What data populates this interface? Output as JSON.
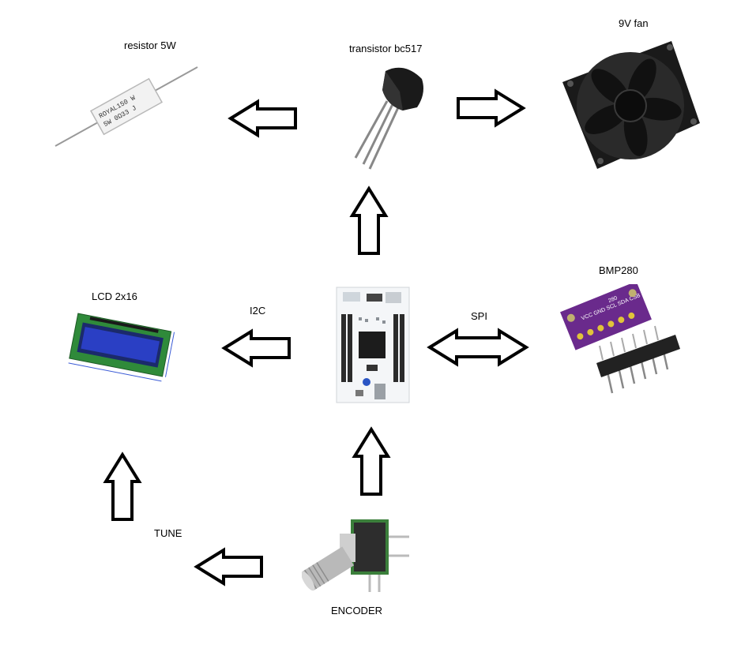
{
  "labels": {
    "resistor": "resistor 5W",
    "transistor": "transistor bc517",
    "fan": "9V fan",
    "bmp": "BMP280",
    "lcd": "LCD 2x16",
    "i2c": "I2C",
    "spi": "SPI",
    "tune": "TUNE",
    "encoder": "ENCODER"
  },
  "resistor_print": {
    "line1": "ROYAL150 W",
    "line2": "5W 0Ω33 J"
  },
  "bmp_print": {
    "pins": "VCC GND SCL SDA CSB SDO",
    "part": "280"
  },
  "colors": {
    "fan_body": "#1a1a1a",
    "lcd_pcb": "#2f8a3a",
    "lcd_screen": "#2a3fc4",
    "bmp_pcb": "#6a2a8c",
    "header_pins": "#222222",
    "board_white": "#f4f6f8",
    "chip": "#1c1c1c",
    "encoder_metal": "#b9b9b9",
    "encoder_green": "#3b7f3b"
  },
  "icons": [
    "resistor-image",
    "transistor-image",
    "fan-image",
    "lcd-image",
    "nucleo-board-image",
    "bmp280-image",
    "encoder-image"
  ]
}
